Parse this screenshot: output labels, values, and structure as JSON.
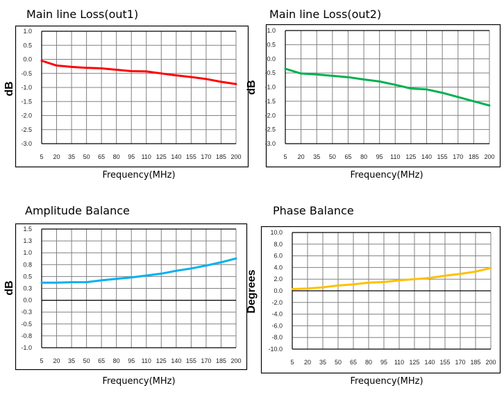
{
  "chart_data": [
    {
      "type": "line",
      "title": "Main line Loss(out1)",
      "xlabel": "Frequency(MHz)",
      "ylabel": "dB",
      "xlim": [
        5,
        200
      ],
      "ylim": [
        -3.0,
        1.0
      ],
      "x_ticks": [
        "5",
        "20",
        "35",
        "50",
        "65",
        "80",
        "95",
        "110",
        "125",
        "140",
        "155",
        "170",
        "185",
        "200"
      ],
      "y_ticks": [
        "1.0",
        "0.5",
        "0.0",
        "-0.5",
        "-1.0",
        "-1.5",
        "-2.0",
        "-2.5",
        "-3.0"
      ],
      "grid": true,
      "zero_line": false,
      "color": "#ff0000",
      "x": [
        5,
        20,
        35,
        50,
        65,
        80,
        95,
        110,
        125,
        140,
        155,
        170,
        185,
        200
      ],
      "values": [
        -0.05,
        -0.22,
        -0.27,
        -0.3,
        -0.32,
        -0.37,
        -0.42,
        -0.43,
        -0.5,
        -0.57,
        -0.63,
        -0.7,
        -0.8,
        -0.88
      ]
    },
    {
      "type": "line",
      "title": "Main line Loss(out2)",
      "xlabel": "Frequency(MHz)",
      "ylabel": "dB",
      "xlim": [
        5,
        200
      ],
      "ylim": [
        -3.0,
        1.0
      ],
      "x_ticks": [
        "5",
        "20",
        "35",
        "50",
        "65",
        "80",
        "95",
        "110",
        "125",
        "140",
        "155",
        "170",
        "185",
        "200"
      ],
      "y_ticks": [
        "1.0",
        "0.5",
        "0.0",
        "-0.5",
        "-1.0",
        "-1.5",
        "-2.0",
        "-2.5",
        "-3.0"
      ],
      "grid": true,
      "zero_line": false,
      "color": "#00b050",
      "x": [
        5,
        20,
        35,
        50,
        65,
        80,
        95,
        110,
        125,
        140,
        155,
        170,
        185,
        200
      ],
      "values": [
        -0.35,
        -0.52,
        -0.55,
        -0.6,
        -0.65,
        -0.73,
        -0.8,
        -0.92,
        -1.05,
        -1.08,
        -1.2,
        -1.35,
        -1.5,
        -1.65
      ]
    },
    {
      "type": "line",
      "title": "Amplitude Balance",
      "xlabel": "Frequency(MHz)",
      "ylabel": "dB",
      "xlim": [
        5,
        200
      ],
      "ylim": [
        -1.0,
        1.5
      ],
      "x_ticks": [
        "5",
        "20",
        "35",
        "50",
        "65",
        "80",
        "95",
        "110",
        "125",
        "140",
        "155",
        "170",
        "185",
        "200"
      ],
      "y_ticks": [
        "1.5",
        "1.3",
        "1.0",
        "0.8",
        "0.5",
        "0.3",
        "0.0",
        "-0.3",
        "-0.5",
        "-0.8",
        "-1.0"
      ],
      "grid": true,
      "zero_line": true,
      "color": "#00b0f0",
      "x": [
        5,
        20,
        35,
        50,
        65,
        80,
        95,
        110,
        125,
        140,
        155,
        170,
        185,
        200
      ],
      "values": [
        0.37,
        0.37,
        0.38,
        0.38,
        0.42,
        0.45,
        0.48,
        0.52,
        0.56,
        0.62,
        0.67,
        0.73,
        0.8,
        0.88
      ]
    },
    {
      "type": "line",
      "title": "Phase  Balance",
      "xlabel": "Frequency(MHz)",
      "ylabel": "Degrees",
      "xlim": [
        5,
        200
      ],
      "ylim": [
        -10.0,
        10.0
      ],
      "x_ticks": [
        "5",
        "20",
        "35",
        "50",
        "65",
        "80",
        "95",
        "110",
        "125",
        "140",
        "155",
        "170",
        "185",
        "200"
      ],
      "y_ticks": [
        "10.0",
        "8.0",
        "6.0",
        "4.0",
        "2.0",
        "0.0",
        "-2.0",
        "-4.0",
        "-6.0",
        "-8.0",
        "-10.0"
      ],
      "grid": true,
      "zero_line": true,
      "color": "#ffc000",
      "x": [
        5,
        20,
        35,
        50,
        65,
        80,
        95,
        110,
        125,
        140,
        155,
        170,
        185,
        200
      ],
      "values": [
        0.3,
        0.4,
        0.6,
        0.9,
        1.1,
        1.4,
        1.5,
        1.8,
        2.0,
        2.2,
        2.6,
        2.9,
        3.3,
        3.9
      ]
    }
  ]
}
